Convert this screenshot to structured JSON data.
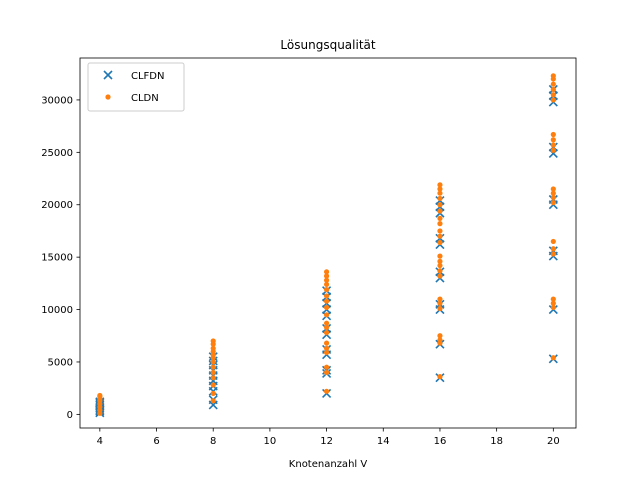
{
  "chart_data": {
    "type": "scatter",
    "title": "Lösungsqualität",
    "xlabel": "Knotenanzahl V",
    "ylabel": "",
    "xlim": [
      3.3,
      20.8
    ],
    "ylim": [
      -1300,
      34000
    ],
    "xticks": [
      4,
      6,
      8,
      10,
      12,
      14,
      16,
      18,
      20
    ],
    "yticks": [
      0,
      5000,
      10000,
      15000,
      20000,
      25000,
      30000
    ],
    "grid": false,
    "legend": {
      "position": "top-left"
    },
    "series": [
      {
        "name": "CLFDN",
        "marker": "x",
        "color": "#1f77b4",
        "points": [
          [
            4,
            150
          ],
          [
            4,
            300
          ],
          [
            4,
            450
          ],
          [
            4,
            600
          ],
          [
            4,
            750
          ],
          [
            4,
            900
          ],
          [
            4,
            1050
          ],
          [
            4,
            1200
          ],
          [
            8,
            900
          ],
          [
            8,
            1400
          ],
          [
            8,
            2200
          ],
          [
            8,
            2700
          ],
          [
            8,
            3200
          ],
          [
            8,
            3700
          ],
          [
            8,
            4200
          ],
          [
            8,
            4700
          ],
          [
            8,
            5100
          ],
          [
            8,
            5500
          ],
          [
            12,
            2000
          ],
          [
            12,
            3900
          ],
          [
            12,
            4200
          ],
          [
            12,
            5700
          ],
          [
            12,
            6200
          ],
          [
            12,
            7600
          ],
          [
            12,
            8200
          ],
          [
            12,
            9400
          ],
          [
            12,
            10000
          ],
          [
            12,
            10600
          ],
          [
            12,
            11200
          ],
          [
            12,
            11800
          ],
          [
            16,
            3500
          ],
          [
            16,
            6700
          ],
          [
            16,
            10000
          ],
          [
            16,
            10500
          ],
          [
            16,
            13000
          ],
          [
            16,
            13600
          ],
          [
            16,
            16200
          ],
          [
            16,
            16800
          ],
          [
            16,
            19200
          ],
          [
            16,
            19800
          ],
          [
            16,
            20400
          ],
          [
            20,
            5300
          ],
          [
            20,
            10000
          ],
          [
            20,
            15100
          ],
          [
            20,
            15600
          ],
          [
            20,
            20000
          ],
          [
            20,
            20500
          ],
          [
            20,
            24900
          ],
          [
            20,
            25500
          ],
          [
            20,
            29800
          ],
          [
            20,
            30400
          ],
          [
            20,
            31000
          ]
        ]
      },
      {
        "name": "CLDN",
        "marker": "o",
        "color": "#ff7f0e",
        "points": [
          [
            4,
            100
          ],
          [
            4,
            400
          ],
          [
            4,
            700
          ],
          [
            4,
            1000
          ],
          [
            4,
            1300
          ],
          [
            4,
            1500
          ],
          [
            4,
            1700
          ],
          [
            4,
            1800
          ],
          [
            8,
            1300
          ],
          [
            8,
            2000
          ],
          [
            8,
            2800
          ],
          [
            8,
            3500
          ],
          [
            8,
            4000
          ],
          [
            8,
            4500
          ],
          [
            8,
            5000
          ],
          [
            8,
            5400
          ],
          [
            8,
            5700
          ],
          [
            8,
            6000
          ],
          [
            8,
            6300
          ],
          [
            8,
            6700
          ],
          [
            8,
            7000
          ],
          [
            12,
            2200
          ],
          [
            12,
            4000
          ],
          [
            12,
            4500
          ],
          [
            12,
            5900
          ],
          [
            12,
            6300
          ],
          [
            12,
            6800
          ],
          [
            12,
            7800
          ],
          [
            12,
            8300
          ],
          [
            12,
            8700
          ],
          [
            12,
            9500
          ],
          [
            12,
            10200
          ],
          [
            12,
            10800
          ],
          [
            12,
            11300
          ],
          [
            12,
            11900
          ],
          [
            12,
            12400
          ],
          [
            12,
            12800
          ],
          [
            12,
            13200
          ],
          [
            12,
            13600
          ],
          [
            16,
            3600
          ],
          [
            16,
            6800
          ],
          [
            16,
            7100
          ],
          [
            16,
            7500
          ],
          [
            16,
            10100
          ],
          [
            16,
            10600
          ],
          [
            16,
            11000
          ],
          [
            16,
            13200
          ],
          [
            16,
            13700
          ],
          [
            16,
            14200
          ],
          [
            16,
            14600
          ],
          [
            16,
            15100
          ],
          [
            16,
            16400
          ],
          [
            16,
            17000
          ],
          [
            16,
            17500
          ],
          [
            16,
            18200
          ],
          [
            16,
            18700
          ],
          [
            16,
            19400
          ],
          [
            16,
            20000
          ],
          [
            16,
            20600
          ],
          [
            16,
            21100
          ],
          [
            16,
            21500
          ],
          [
            16,
            21900
          ],
          [
            20,
            5400
          ],
          [
            20,
            10200
          ],
          [
            20,
            10600
          ],
          [
            20,
            11000
          ],
          [
            20,
            15300
          ],
          [
            20,
            15800
          ],
          [
            20,
            16500
          ],
          [
            20,
            20200
          ],
          [
            20,
            20700
          ],
          [
            20,
            21100
          ],
          [
            20,
            21500
          ],
          [
            20,
            25200
          ],
          [
            20,
            25700
          ],
          [
            20,
            26200
          ],
          [
            20,
            26700
          ],
          [
            20,
            30000
          ],
          [
            20,
            30500
          ],
          [
            20,
            31000
          ],
          [
            20,
            31500
          ],
          [
            20,
            32000
          ],
          [
            20,
            32300
          ]
        ]
      }
    ]
  }
}
